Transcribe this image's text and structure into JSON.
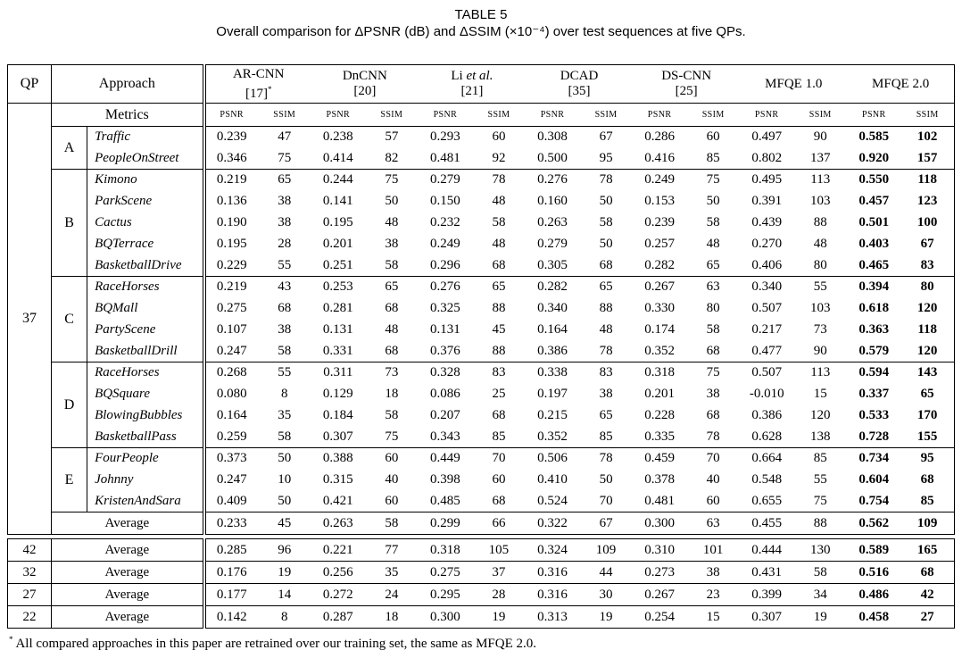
{
  "title": "TABLE 5",
  "caption": "Overall comparison for ΔPSNR (dB) and ΔSSIM (×10⁻⁴) over test sequences at five QPs.",
  "footnote": {
    "marker": "*",
    "text": "All compared approaches in this paper are retrained over our training set, the same as MFQE 2.0."
  },
  "header": {
    "qp": "QP",
    "approach": "Approach",
    "metrics_label": "Metrics",
    "psnr": "PSNR",
    "ssim": "SSIM",
    "methods": [
      {
        "name_parts": [
          {
            "text": "AR-CNN",
            "italic": false
          }
        ],
        "ref": "[17]",
        "ref_sup": "*",
        "bold": false
      },
      {
        "name_parts": [
          {
            "text": "DnCNN",
            "italic": false
          }
        ],
        "ref": "[20]",
        "ref_sup": "",
        "bold": false
      },
      {
        "name_parts": [
          {
            "text": "Li ",
            "italic": false
          },
          {
            "text": "et al.",
            "italic": true
          }
        ],
        "ref": "[21]",
        "ref_sup": "",
        "bold": false
      },
      {
        "name_parts": [
          {
            "text": "DCAD",
            "italic": false
          }
        ],
        "ref": "[35]",
        "ref_sup": "",
        "bold": false
      },
      {
        "name_parts": [
          {
            "text": "DS-CNN",
            "italic": false
          }
        ],
        "ref": "[25]",
        "ref_sup": "",
        "bold": false
      },
      {
        "name_parts": [
          {
            "text": "MFQE 1.0",
            "italic": false
          }
        ],
        "ref": "",
        "ref_sup": "",
        "bold": false
      },
      {
        "name_parts": [
          {
            "text": "MFQE 2.0",
            "italic": false
          }
        ],
        "ref": "",
        "ref_sup": "",
        "bold": true
      }
    ]
  },
  "qp37": {
    "qp": "37",
    "groups": [
      {
        "class": "A",
        "rows": [
          {
            "name": "Traffic",
            "values": [
              "0.239",
              "47",
              "0.238",
              "57",
              "0.293",
              "60",
              "0.308",
              "67",
              "0.286",
              "60",
              "0.497",
              "90",
              "0.585",
              "102"
            ]
          },
          {
            "name": "PeopleOnStreet",
            "values": [
              "0.346",
              "75",
              "0.414",
              "82",
              "0.481",
              "92",
              "0.500",
              "95",
              "0.416",
              "85",
              "0.802",
              "137",
              "0.920",
              "157"
            ]
          }
        ]
      },
      {
        "class": "B",
        "rows": [
          {
            "name": "Kimono",
            "values": [
              "0.219",
              "65",
              "0.244",
              "75",
              "0.279",
              "78",
              "0.276",
              "78",
              "0.249",
              "75",
              "0.495",
              "113",
              "0.550",
              "118"
            ]
          },
          {
            "name": "ParkScene",
            "values": [
              "0.136",
              "38",
              "0.141",
              "50",
              "0.150",
              "48",
              "0.160",
              "50",
              "0.153",
              "50",
              "0.391",
              "103",
              "0.457",
              "123"
            ]
          },
          {
            "name": "Cactus",
            "values": [
              "0.190",
              "38",
              "0.195",
              "48",
              "0.232",
              "58",
              "0.263",
              "58",
              "0.239",
              "58",
              "0.439",
              "88",
              "0.501",
              "100"
            ]
          },
          {
            "name": "BQTerrace",
            "values": [
              "0.195",
              "28",
              "0.201",
              "38",
              "0.249",
              "48",
              "0.279",
              "50",
              "0.257",
              "48",
              "0.270",
              "48",
              "0.403",
              "67"
            ]
          },
          {
            "name": "BasketballDrive",
            "values": [
              "0.229",
              "55",
              "0.251",
              "58",
              "0.296",
              "68",
              "0.305",
              "68",
              "0.282",
              "65",
              "0.406",
              "80",
              "0.465",
              "83"
            ]
          }
        ]
      },
      {
        "class": "C",
        "rows": [
          {
            "name": "RaceHorses",
            "values": [
              "0.219",
              "43",
              "0.253",
              "65",
              "0.276",
              "65",
              "0.282",
              "65",
              "0.267",
              "63",
              "0.340",
              "55",
              "0.394",
              "80"
            ]
          },
          {
            "name": "BQMall",
            "values": [
              "0.275",
              "68",
              "0.281",
              "68",
              "0.325",
              "88",
              "0.340",
              "88",
              "0.330",
              "80",
              "0.507",
              "103",
              "0.618",
              "120"
            ]
          },
          {
            "name": "PartyScene",
            "values": [
              "0.107",
              "38",
              "0.131",
              "48",
              "0.131",
              "45",
              "0.164",
              "48",
              "0.174",
              "58",
              "0.217",
              "73",
              "0.363",
              "118"
            ]
          },
          {
            "name": "BasketballDrill",
            "values": [
              "0.247",
              "58",
              "0.331",
              "68",
              "0.376",
              "88",
              "0.386",
              "78",
              "0.352",
              "68",
              "0.477",
              "90",
              "0.579",
              "120"
            ]
          }
        ]
      },
      {
        "class": "D",
        "rows": [
          {
            "name": "RaceHorses",
            "values": [
              "0.268",
              "55",
              "0.311",
              "73",
              "0.328",
              "83",
              "0.338",
              "83",
              "0.318",
              "75",
              "0.507",
              "113",
              "0.594",
              "143"
            ]
          },
          {
            "name": "BQSquare",
            "values": [
              "0.080",
              "8",
              "0.129",
              "18",
              "0.086",
              "25",
              "0.197",
              "38",
              "0.201",
              "38",
              "-0.010",
              "15",
              "0.337",
              "65"
            ]
          },
          {
            "name": "BlowingBubbles",
            "values": [
              "0.164",
              "35",
              "0.184",
              "58",
              "0.207",
              "68",
              "0.215",
              "65",
              "0.228",
              "68",
              "0.386",
              "120",
              "0.533",
              "170"
            ]
          },
          {
            "name": "BasketballPass",
            "values": [
              "0.259",
              "58",
              "0.307",
              "75",
              "0.343",
              "85",
              "0.352",
              "85",
              "0.335",
              "78",
              "0.628",
              "138",
              "0.728",
              "155"
            ]
          }
        ]
      },
      {
        "class": "E",
        "rows": [
          {
            "name": "FourPeople",
            "values": [
              "0.373",
              "50",
              "0.388",
              "60",
              "0.449",
              "70",
              "0.506",
              "78",
              "0.459",
              "70",
              "0.664",
              "85",
              "0.734",
              "95"
            ]
          },
          {
            "name": "Johnny",
            "values": [
              "0.247",
              "10",
              "0.315",
              "40",
              "0.398",
              "60",
              "0.410",
              "50",
              "0.378",
              "40",
              "0.548",
              "55",
              "0.604",
              "68"
            ]
          },
          {
            "name": "KristenAndSara",
            "values": [
              "0.409",
              "50",
              "0.421",
              "60",
              "0.485",
              "68",
              "0.524",
              "70",
              "0.481",
              "60",
              "0.655",
              "75",
              "0.754",
              "85"
            ]
          }
        ]
      }
    ],
    "average": {
      "label": "Average",
      "values": [
        "0.233",
        "45",
        "0.263",
        "58",
        "0.299",
        "66",
        "0.322",
        "67",
        "0.300",
        "63",
        "0.455",
        "88",
        "0.562",
        "109"
      ]
    }
  },
  "qp_averages": [
    {
      "qp": "42",
      "label": "Average",
      "values": [
        "0.285",
        "96",
        "0.221",
        "77",
        "0.318",
        "105",
        "0.324",
        "109",
        "0.310",
        "101",
        "0.444",
        "130",
        "0.589",
        "165"
      ]
    },
    {
      "qp": "32",
      "label": "Average",
      "values": [
        "0.176",
        "19",
        "0.256",
        "35",
        "0.275",
        "37",
        "0.316",
        "44",
        "0.273",
        "38",
        "0.431",
        "58",
        "0.516",
        "68"
      ]
    },
    {
      "qp": "27",
      "label": "Average",
      "values": [
        "0.177",
        "14",
        "0.272",
        "24",
        "0.295",
        "28",
        "0.316",
        "30",
        "0.267",
        "23",
        "0.399",
        "34",
        "0.486",
        "42"
      ]
    },
    {
      "qp": "22",
      "label": "Average",
      "values": [
        "0.142",
        "8",
        "0.287",
        "18",
        "0.300",
        "19",
        "0.313",
        "19",
        "0.254",
        "15",
        "0.307",
        "19",
        "0.458",
        "27"
      ]
    }
  ]
}
